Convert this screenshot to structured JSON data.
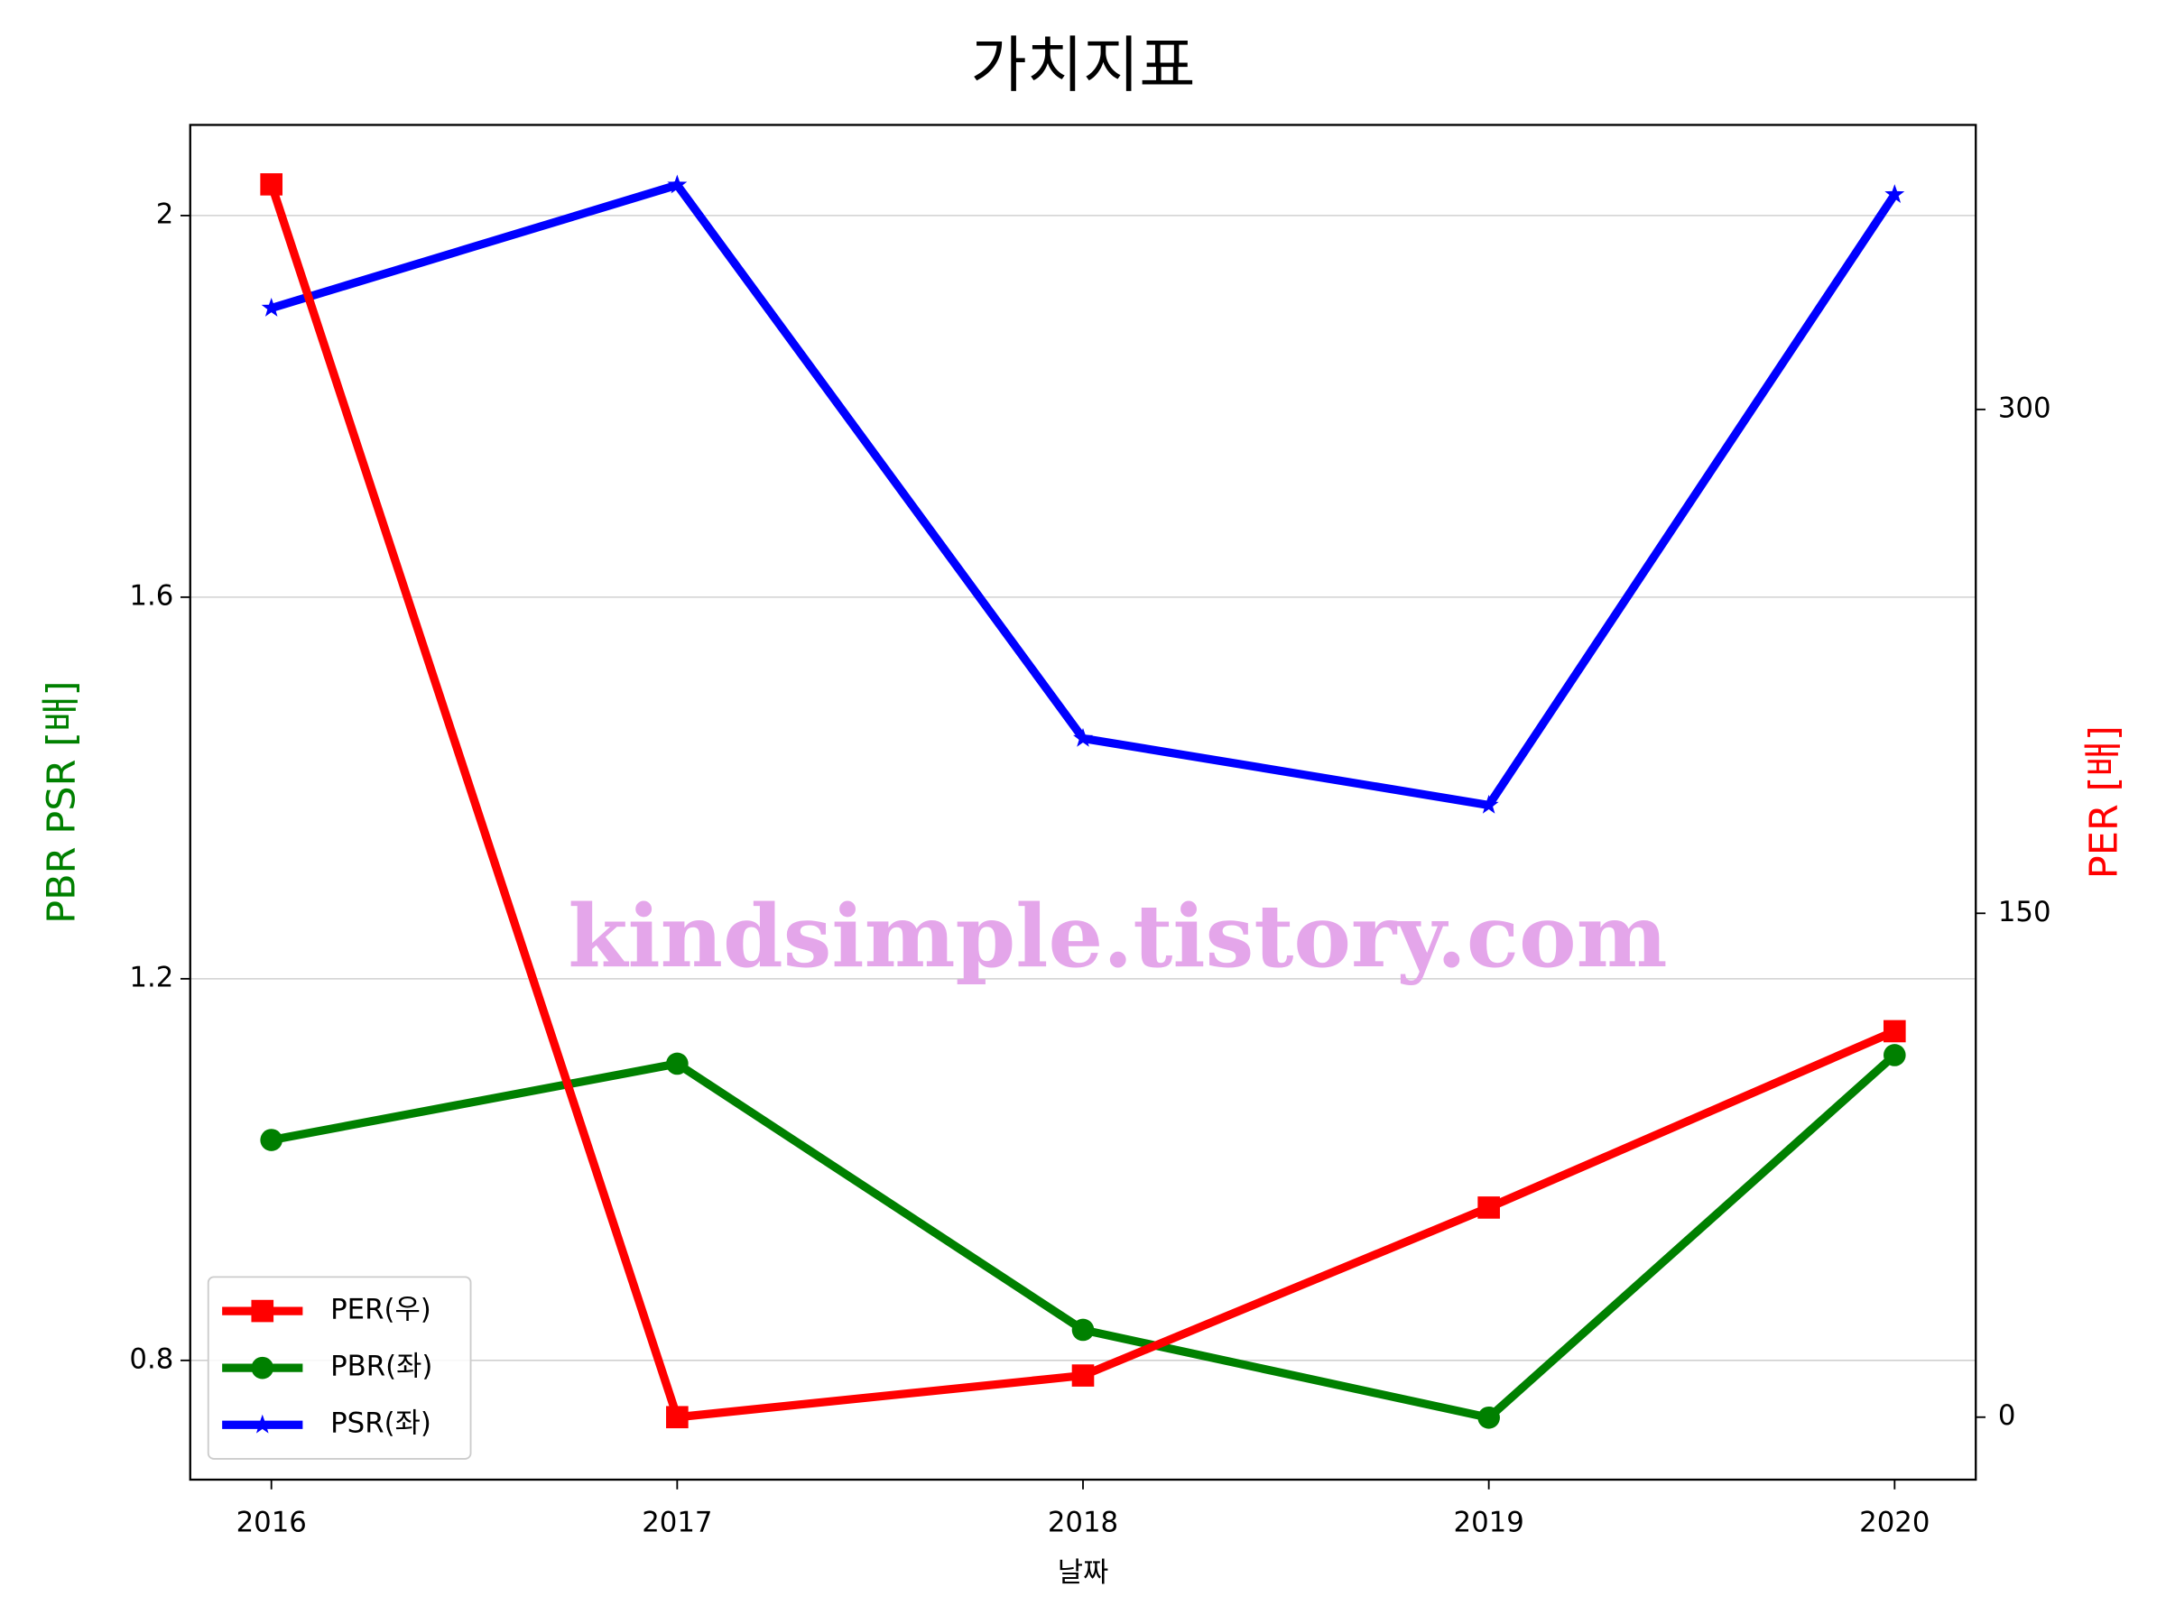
{
  "chart_data": {
    "type": "line",
    "title": "가치지표",
    "xlabel": "날짜",
    "ylabel": "PBR PSR [배]",
    "ylabel_color": "green",
    "y2label": "PER [배]",
    "y2label_color": "red",
    "watermark": "kindsimple.tistory.com",
    "x": [
      2016,
      2017,
      2018,
      2019,
      2020
    ],
    "xlim": [
      2015.8,
      2020.2
    ],
    "xticks": [
      2016,
      2017,
      2018,
      2019,
      2020
    ],
    "ylim": [
      0.675,
      2.095
    ],
    "yticks": [
      0.8,
      1.2,
      1.6,
      2.0
    ],
    "y2lim": [
      -18.6,
      384.7
    ],
    "y2ticks": [
      0,
      150,
      300
    ],
    "grid": true,
    "legend": "lower left",
    "series": [
      {
        "name": "PER(우)",
        "color": "red",
        "marker": "square",
        "axis": "y2",
        "values": [
          367,
          0,
          12.4,
          62.4,
          114.9
        ]
      },
      {
        "name": "PBR(좌)",
        "color": "green",
        "marker": "circle",
        "values": [
          1.031,
          1.111,
          0.832,
          0.74,
          1.12
        ]
      },
      {
        "name": "PSR(좌)",
        "color": "blue",
        "marker": "star",
        "values": [
          1.903,
          2.032,
          1.452,
          1.382,
          2.022
        ]
      }
    ]
  }
}
